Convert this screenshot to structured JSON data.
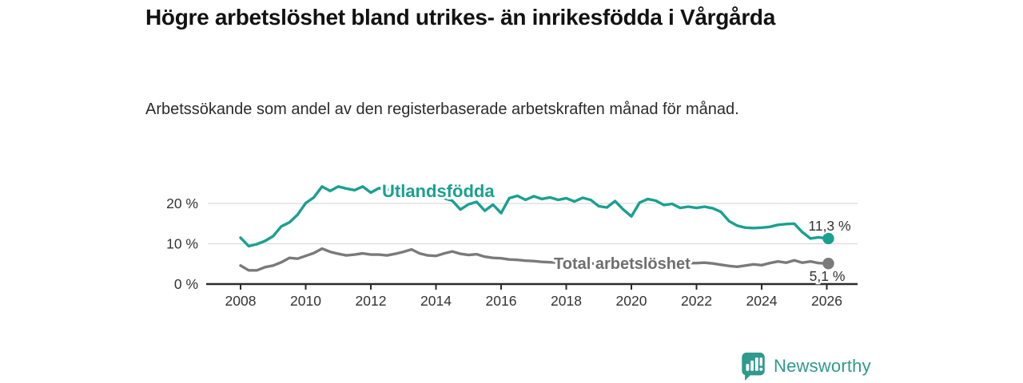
{
  "title": "Högre arbetslöshet bland utrikes- än inrikesfödda i Vårgårda",
  "subtitle": "Arbetssökande som andel av den registerbaserade arbetskraften månad för månad.",
  "branding": {
    "logo_text": "Newsworthy",
    "logo_icon": "bar-chart-bubble-icon"
  },
  "colors": {
    "accent_teal": "#1aa091",
    "line_gray": "#7a7a7a",
    "series_label_gray": "#6e6e6e",
    "axis": "#2b2b2b",
    "tick_text": "#333333",
    "grid": "#dadada",
    "value_text": "#333333",
    "logo": "#2f9a8d",
    "title_text": "#121212",
    "body_text": "#2b2b2b"
  },
  "chart_data": {
    "type": "line",
    "title": "",
    "xlabel": "",
    "ylabel": "",
    "x_unit": "year (monthly series, sampled quarterly)",
    "grid": "horizontal-only",
    "legend": "inline-labels",
    "xlim": [
      2007.8,
      2026.9
    ],
    "ylim": [
      0,
      26.7
    ],
    "x_ticks": [
      {
        "value": 2008,
        "label": "2008"
      },
      {
        "value": 2010,
        "label": "2010"
      },
      {
        "value": 2012,
        "label": "2012"
      },
      {
        "value": 2014,
        "label": "2014"
      },
      {
        "value": 2016,
        "label": "2016"
      },
      {
        "value": 2018,
        "label": "2018"
      },
      {
        "value": 2020,
        "label": "2020"
      },
      {
        "value": 2022,
        "label": "2022"
      },
      {
        "value": 2024,
        "label": "2024"
      },
      {
        "value": 2026,
        "label": "2026"
      }
    ],
    "y_ticks": [
      {
        "value": 0,
        "label": "0 %"
      },
      {
        "value": 10,
        "label": "10 %"
      },
      {
        "value": 20,
        "label": "20 %"
      }
    ],
    "x": [
      2008,
      2008.25,
      2008.5,
      2008.75,
      2009,
      2009.25,
      2009.5,
      2009.75,
      2010,
      2010.25,
      2010.5,
      2010.75,
      2011,
      2011.25,
      2011.5,
      2011.75,
      2012,
      2012.25,
      2012.5,
      2012.75,
      2013,
      2013.25,
      2013.5,
      2013.75,
      2014,
      2014.25,
      2014.5,
      2014.75,
      2015,
      2015.25,
      2015.5,
      2015.75,
      2016,
      2016.25,
      2016.5,
      2016.75,
      2017,
      2017.25,
      2017.5,
      2017.75,
      2018,
      2018.25,
      2018.5,
      2018.75,
      2019,
      2019.25,
      2019.5,
      2019.75,
      2020,
      2020.25,
      2020.5,
      2020.75,
      2021,
      2021.25,
      2021.5,
      2021.75,
      2022,
      2022.25,
      2022.5,
      2022.75,
      2023,
      2023.25,
      2023.5,
      2023.75,
      2024,
      2024.25,
      2024.5,
      2024.75,
      2025,
      2025.25,
      2025.5,
      2025.75,
      2026
    ],
    "series": [
      {
        "name": "Utlandsfödda",
        "color": "#1aa091",
        "end_label": "11,3 %",
        "end_value": 11.3,
        "values": [
          11.5,
          9.4,
          9.9,
          10.7,
          11.9,
          14.3,
          15.3,
          17.2,
          20.1,
          21.5,
          24.2,
          23.1,
          24.2,
          23.7,
          23.3,
          24.2,
          22.7,
          23.8,
          23.5,
          23.0,
          24.6,
          21.9,
          23.4,
          23.1,
          23.8,
          21.3,
          20.7,
          18.5,
          19.8,
          20.4,
          18.2,
          19.7,
          17.6,
          21.3,
          21.9,
          20.9,
          21.8,
          21.1,
          21.5,
          20.9,
          21.3,
          20.5,
          21.4,
          20.9,
          19.3,
          19.0,
          20.6,
          18.5,
          16.8,
          20.2,
          21.1,
          20.7,
          19.6,
          19.9,
          18.9,
          19.2,
          18.9,
          19.2,
          18.8,
          17.9,
          15.6,
          14.5,
          14.0,
          13.9,
          14.0,
          14.2,
          14.7,
          14.9,
          15.0,
          12.9,
          11.3,
          11.6,
          11.3
        ]
      },
      {
        "name": "Total arbetslöshet",
        "color": "#7a7a7a",
        "end_label": "5,1 %",
        "end_value": 5.1,
        "values": [
          4.6,
          3.4,
          3.4,
          4.2,
          4.6,
          5.4,
          6.5,
          6.3,
          7.0,
          7.7,
          8.8,
          8.0,
          7.5,
          7.1,
          7.3,
          7.6,
          7.3,
          7.3,
          7.1,
          7.5,
          8.0,
          8.6,
          7.6,
          7.1,
          7.0,
          7.6,
          8.1,
          7.5,
          7.2,
          7.4,
          6.8,
          6.5,
          6.4,
          6.1,
          6.0,
          5.8,
          5.7,
          5.5,
          5.4,
          5.3,
          5.3,
          5.2,
          5.2,
          5.1,
          5.1,
          5.0,
          5.0,
          5.1,
          5.2,
          5.6,
          5.7,
          5.6,
          5.5,
          5.4,
          5.3,
          5.2,
          5.2,
          5.3,
          5.1,
          4.8,
          4.5,
          4.3,
          4.6,
          4.9,
          4.7,
          5.2,
          5.6,
          5.3,
          5.9,
          5.3,
          5.6,
          5.2,
          5.1
        ]
      }
    ]
  }
}
